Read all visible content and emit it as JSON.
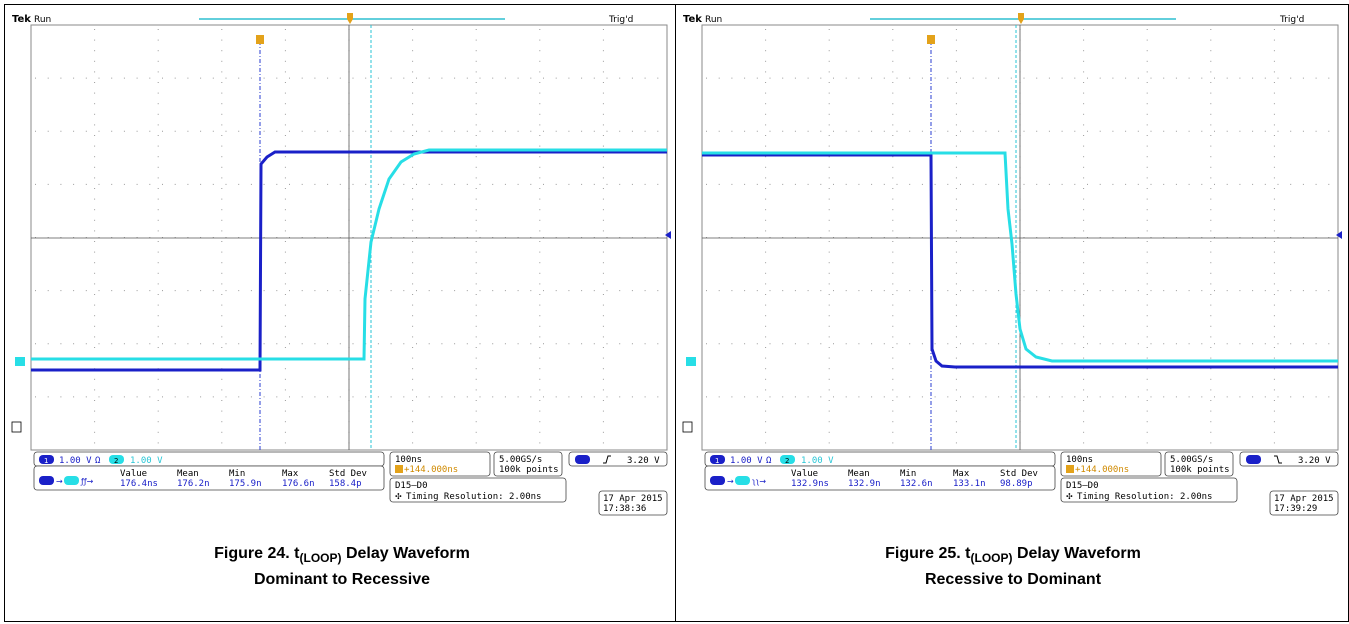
{
  "panels": [
    {
      "scope": {
        "brand": "Tek",
        "run": "Run",
        "status": "Trig'd",
        "ch1_scale": "1.00 V",
        "ch1_ohm": "Ω",
        "ch1_num": "1",
        "ch2_num": "2",
        "ch2_scale": "1.00 V",
        "timebase": "100ns",
        "trigger_offset": "+144.000ns",
        "sample_rate": "5.00GS/s",
        "record_length": "100k points",
        "trig_level": "3.20 V",
        "trig_edge": "rising",
        "meas_headers": [
          "Value",
          "Mean",
          "Min",
          "Max",
          "Std Dev"
        ],
        "meas_values": [
          "176.4ns",
          "176.2n",
          "175.9n",
          "176.6n",
          "158.4p"
        ],
        "digital": "D15–D0",
        "timing_res": "Timing Resolution: 2.00ns",
        "date": "17 Apr 2015",
        "time": "17:38:36",
        "ch1_color": "#1a20c8",
        "ch2_color": "#27dee6"
      },
      "caption": {
        "prefix": "Figure 24. t",
        "sub": "(LOOP)",
        "suffix": " Delay Waveform",
        "line2": "Dominant to Recessive"
      }
    },
    {
      "scope": {
        "brand": "Tek",
        "run": "Run",
        "status": "Trig'd",
        "ch1_scale": "1.00 V",
        "ch1_ohm": "Ω",
        "ch1_num": "1",
        "ch2_num": "2",
        "ch2_scale": "1.00 V",
        "timebase": "100ns",
        "trigger_offset": "+144.000ns",
        "sample_rate": "5.00GS/s",
        "record_length": "100k points",
        "trig_level": "3.20 V",
        "trig_edge": "falling",
        "meas_headers": [
          "Value",
          "Mean",
          "Min",
          "Max",
          "Std Dev"
        ],
        "meas_values": [
          "132.9ns",
          "132.9n",
          "132.6n",
          "133.1n",
          "98.89p"
        ],
        "digital": "D15–D0",
        "timing_res": "Timing Resolution: 2.00ns",
        "date": "17 Apr 2015",
        "time": "17:39:29",
        "ch1_color": "#1a20c8",
        "ch2_color": "#27dee6"
      },
      "caption": {
        "prefix": "Figure 25. t",
        "sub": "(LOOP)",
        "suffix": " Delay Waveform",
        "line2": "Recessive to Dominant"
      }
    }
  ]
}
